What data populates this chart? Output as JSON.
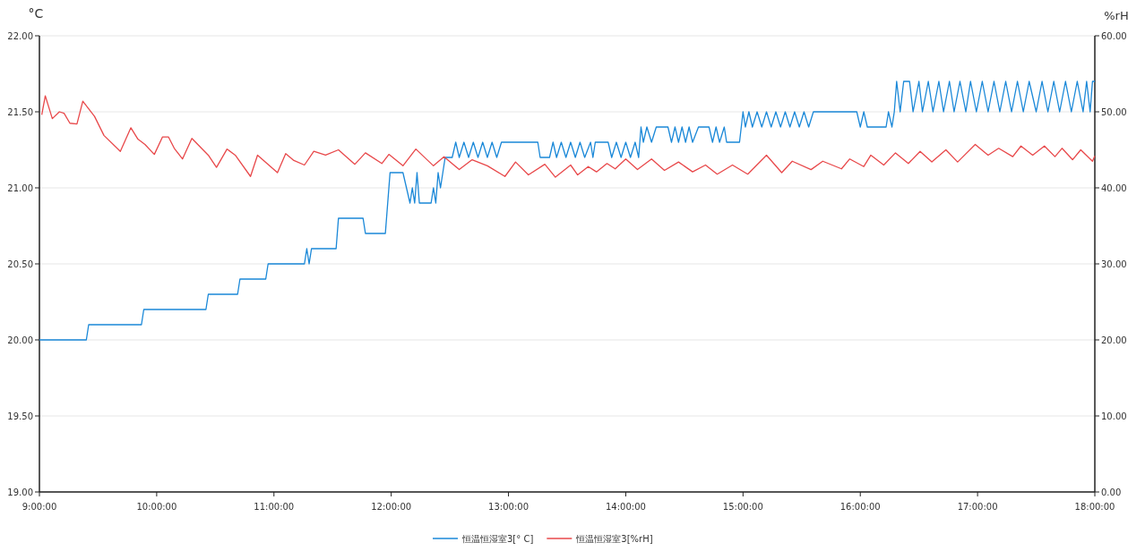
{
  "chart_data": {
    "type": "line",
    "ylabel": "°C",
    "y2label": "%rH",
    "xlim": [
      9,
      18
    ],
    "xticks": [
      {
        "value": 9,
        "label": "9:00:00"
      },
      {
        "value": 10,
        "label": "10:00:00"
      },
      {
        "value": 11,
        "label": "11:00:00"
      },
      {
        "value": 12,
        "label": "12:00:00"
      },
      {
        "value": 13,
        "label": "13:00:00"
      },
      {
        "value": 14,
        "label": "14:00:00"
      },
      {
        "value": 15,
        "label": "15:00:00"
      },
      {
        "value": 16,
        "label": "16:00:00"
      },
      {
        "value": 17,
        "label": "17:00:00"
      },
      {
        "value": 18,
        "label": "18:00:00"
      }
    ],
    "ylim": [
      19,
      22
    ],
    "yticks": [
      {
        "value": 19,
        "label": "19.00"
      },
      {
        "value": 19.5,
        "label": "19.50"
      },
      {
        "value": 20,
        "label": "20.00"
      },
      {
        "value": 20.5,
        "label": "20.50"
      },
      {
        "value": 21,
        "label": "21.00"
      },
      {
        "value": 21.5,
        "label": "21.50"
      },
      {
        "value": 22,
        "label": "22.00"
      }
    ],
    "y2lim": [
      0,
      60
    ],
    "y2ticks": [
      {
        "value": 0,
        "label": "0.00"
      },
      {
        "value": 10,
        "label": "10.00"
      },
      {
        "value": 20,
        "label": "20.00"
      },
      {
        "value": 30,
        "label": "30.00"
      },
      {
        "value": 40,
        "label": "40.00"
      },
      {
        "value": 50,
        "label": "50.00"
      },
      {
        "value": 60,
        "label": "60.00"
      }
    ],
    "grid": "y",
    "legend": "bottom",
    "series": [
      {
        "name": "恒温恒湿室3[° C]",
        "color": "#1a88d8",
        "x": [
          9.0,
          9.4,
          9.42,
          9.87,
          9.89,
          10.42,
          10.44,
          10.69,
          10.71,
          10.93,
          10.95,
          11.26,
          11.28,
          11.3,
          11.32,
          11.53,
          11.55,
          11.76,
          11.78,
          11.95,
          11.97,
          11.99,
          12.1,
          12.13,
          12.16,
          12.18,
          12.2,
          12.22,
          12.24,
          12.34,
          12.36,
          12.38,
          12.4,
          12.42,
          12.44,
          12.46,
          12.52,
          12.55,
          12.58,
          12.62,
          12.66,
          12.7,
          12.74,
          12.78,
          12.82,
          12.86,
          12.9,
          12.94,
          13.25,
          13.27,
          13.35,
          13.38,
          13.41,
          13.45,
          13.49,
          13.53,
          13.57,
          13.61,
          13.65,
          13.7,
          13.72,
          13.74,
          13.85,
          13.88,
          13.92,
          13.96,
          14.0,
          14.04,
          14.08,
          14.11,
          14.13,
          14.15,
          14.18,
          14.22,
          14.26,
          14.36,
          14.39,
          14.42,
          14.45,
          14.48,
          14.51,
          14.54,
          14.57,
          14.62,
          14.71,
          14.74,
          14.77,
          14.8,
          14.84,
          14.86,
          14.97,
          15.0,
          15.02,
          15.05,
          15.08,
          15.12,
          15.16,
          15.2,
          15.24,
          15.28,
          15.32,
          15.36,
          15.4,
          15.44,
          15.48,
          15.52,
          15.56,
          15.6,
          15.65,
          15.97,
          16.0,
          16.03,
          16.06,
          16.09,
          16.22,
          16.24,
          16.27,
          16.29,
          16.31,
          16.34,
          16.37,
          16.42,
          16.45,
          16.5,
          16.53,
          16.58,
          16.62,
          16.67,
          16.71,
          16.76,
          16.8,
          16.85,
          16.9,
          16.94,
          16.99,
          17.04,
          17.09,
          17.14,
          17.19,
          17.24,
          17.29,
          17.34,
          17.39,
          17.44,
          17.5,
          17.55,
          17.6,
          17.65,
          17.7,
          17.75,
          17.8,
          17.85,
          17.9,
          17.93,
          17.96,
          17.98,
          18.0
        ],
        "values": [
          20.0,
          20.0,
          20.1,
          20.1,
          20.2,
          20.2,
          20.3,
          20.3,
          20.4,
          20.4,
          20.5,
          20.5,
          20.6,
          20.5,
          20.6,
          20.6,
          20.8,
          20.8,
          20.7,
          20.7,
          20.9,
          21.1,
          21.1,
          21.0,
          20.9,
          21.0,
          20.9,
          21.1,
          20.9,
          20.9,
          21.0,
          20.9,
          21.1,
          21.0,
          21.1,
          21.2,
          21.2,
          21.3,
          21.2,
          21.3,
          21.2,
          21.3,
          21.2,
          21.3,
          21.2,
          21.3,
          21.2,
          21.3,
          21.3,
          21.2,
          21.2,
          21.3,
          21.2,
          21.3,
          21.2,
          21.3,
          21.2,
          21.3,
          21.2,
          21.3,
          21.2,
          21.3,
          21.3,
          21.2,
          21.3,
          21.2,
          21.3,
          21.2,
          21.3,
          21.2,
          21.4,
          21.3,
          21.4,
          21.3,
          21.4,
          21.4,
          21.3,
          21.4,
          21.3,
          21.4,
          21.3,
          21.4,
          21.3,
          21.4,
          21.4,
          21.3,
          21.4,
          21.3,
          21.4,
          21.3,
          21.3,
          21.5,
          21.4,
          21.5,
          21.4,
          21.5,
          21.4,
          21.5,
          21.4,
          21.5,
          21.4,
          21.5,
          21.4,
          21.5,
          21.4,
          21.5,
          21.4,
          21.5,
          21.5,
          21.5,
          21.4,
          21.5,
          21.4,
          21.4,
          21.4,
          21.5,
          21.4,
          21.5,
          21.7,
          21.5,
          21.7,
          21.7,
          21.5,
          21.7,
          21.5,
          21.7,
          21.5,
          21.7,
          21.5,
          21.7,
          21.5,
          21.7,
          21.5,
          21.7,
          21.5,
          21.7,
          21.5,
          21.7,
          21.5,
          21.7,
          21.5,
          21.7,
          21.5,
          21.7,
          21.5,
          21.7,
          21.5,
          21.7,
          21.5,
          21.7,
          21.5,
          21.7,
          21.5,
          21.7,
          21.5,
          21.7,
          21.7
        ]
      },
      {
        "name": "恒温恒湿室3[%rH]",
        "color": "#e8484a",
        "axis": "y2",
        "x": [
          9.02,
          9.05,
          9.11,
          9.17,
          9.21,
          9.26,
          9.32,
          9.37,
          9.47,
          9.55,
          9.69,
          9.78,
          9.84,
          9.9,
          9.98,
          10.05,
          10.1,
          10.15,
          10.22,
          10.3,
          10.44,
          10.51,
          10.6,
          10.67,
          10.8,
          10.86,
          11.03,
          11.1,
          11.17,
          11.26,
          11.34,
          11.44,
          11.55,
          11.69,
          11.78,
          11.92,
          11.98,
          12.1,
          12.21,
          12.36,
          12.45,
          12.58,
          12.69,
          12.82,
          12.97,
          13.06,
          13.17,
          13.31,
          13.4,
          13.53,
          13.59,
          13.68,
          13.75,
          13.84,
          13.91,
          14.0,
          14.1,
          14.22,
          14.33,
          14.45,
          14.57,
          14.68,
          14.78,
          14.91,
          15.04,
          15.2,
          15.33,
          15.42,
          15.58,
          15.68,
          15.84,
          15.91,
          16.03,
          16.09,
          16.2,
          16.3,
          16.41,
          16.51,
          16.61,
          16.73,
          16.83,
          16.98,
          17.09,
          17.18,
          17.3,
          17.37,
          17.47,
          17.57,
          17.66,
          17.72,
          17.81,
          17.88,
          17.98,
          18.0
        ],
        "values": [
          49.6,
          52.1,
          49.1,
          50.0,
          49.8,
          48.5,
          48.4,
          51.4,
          49.4,
          46.9,
          44.8,
          47.9,
          46.4,
          45.7,
          44.4,
          46.7,
          46.7,
          45.2,
          43.8,
          46.5,
          44.3,
          42.7,
          45.1,
          44.3,
          41.5,
          44.3,
          42.0,
          44.5,
          43.6,
          43.0,
          44.8,
          44.3,
          45.0,
          43.1,
          44.6,
          43.2,
          44.4,
          42.9,
          45.1,
          42.9,
          44.1,
          42.4,
          43.7,
          42.9,
          41.5,
          43.4,
          41.7,
          43.1,
          41.4,
          43.0,
          41.7,
          42.8,
          42.1,
          43.2,
          42.5,
          43.8,
          42.4,
          43.8,
          42.3,
          43.4,
          42.1,
          43.0,
          41.8,
          43.0,
          41.8,
          44.3,
          42.0,
          43.5,
          42.4,
          43.5,
          42.5,
          43.8,
          42.8,
          44.3,
          43.0,
          44.6,
          43.2,
          44.8,
          43.4,
          45.0,
          43.4,
          45.7,
          44.3,
          45.2,
          44.1,
          45.5,
          44.3,
          45.5,
          44.1,
          45.2,
          43.7,
          45.0,
          43.5,
          44.2
        ]
      }
    ]
  }
}
